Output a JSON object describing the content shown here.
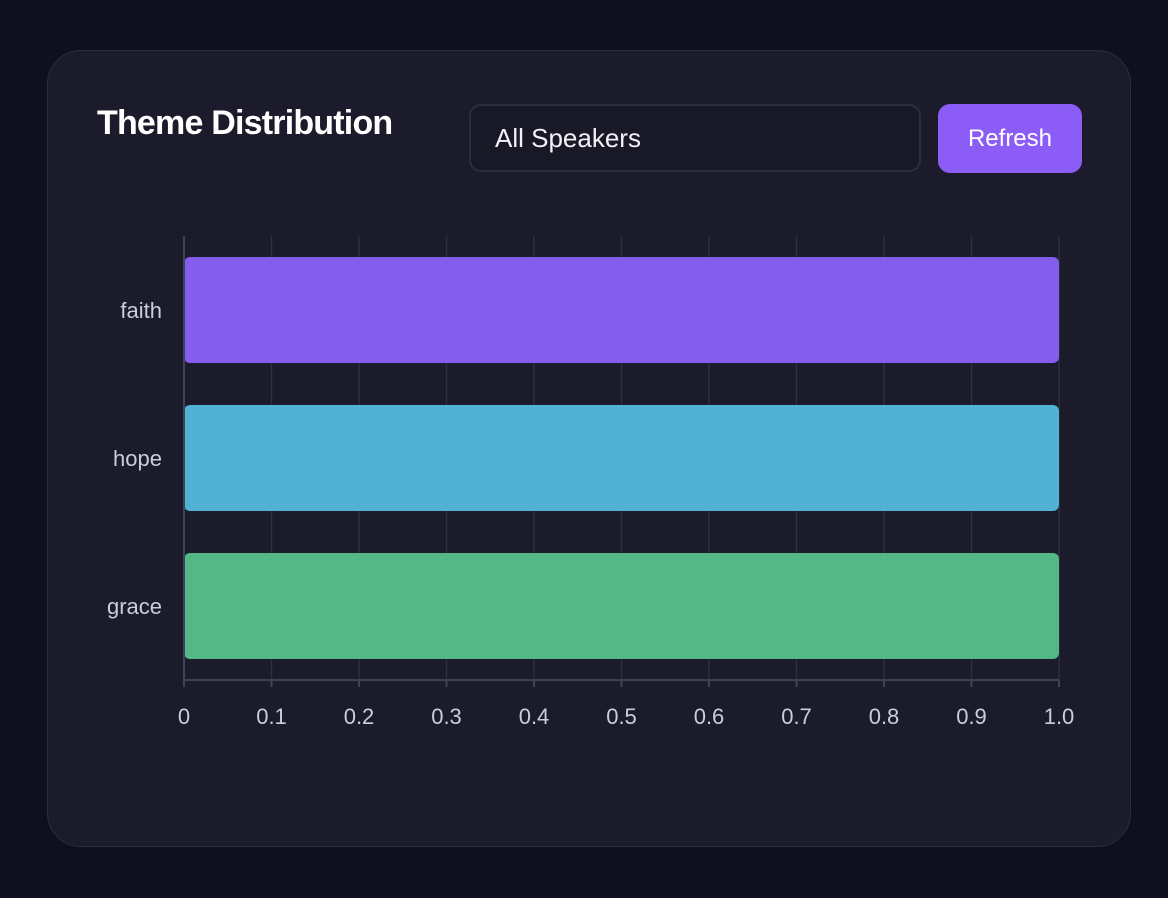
{
  "card": {
    "title": "Theme Distribution",
    "speaker_select": {
      "value": "All Speakers"
    },
    "refresh_label": "Refresh"
  },
  "colors": {
    "accent": "#8b5cf6",
    "background": "#0f0f1e",
    "card": "#1b1b2c",
    "grid": "#2a3142",
    "axis": "#3a4456",
    "tick_text": "#c9cde0"
  },
  "chart_data": {
    "type": "bar",
    "orientation": "horizontal",
    "categories": [
      "faith",
      "hope",
      "grace"
    ],
    "values": [
      1.0,
      1.0,
      1.0
    ],
    "bar_colors": [
      "#855ded",
      "#52b2d3",
      "#56b786"
    ],
    "xlim": [
      0,
      1.0
    ],
    "xticks": [
      {
        "value": 0,
        "label": "0"
      },
      {
        "value": 0.1,
        "label": "0.1"
      },
      {
        "value": 0.2,
        "label": "0.2"
      },
      {
        "value": 0.3,
        "label": "0.3"
      },
      {
        "value": 0.4,
        "label": "0.4"
      },
      {
        "value": 0.5,
        "label": "0.5"
      },
      {
        "value": 0.6,
        "label": "0.6"
      },
      {
        "value": 0.7,
        "label": "0.7"
      },
      {
        "value": 0.8,
        "label": "0.8"
      },
      {
        "value": 0.9,
        "label": "0.9"
      },
      {
        "value": 1.0,
        "label": "1.0"
      }
    ],
    "grid": true,
    "title": "",
    "xlabel": "",
    "ylabel": ""
  }
}
